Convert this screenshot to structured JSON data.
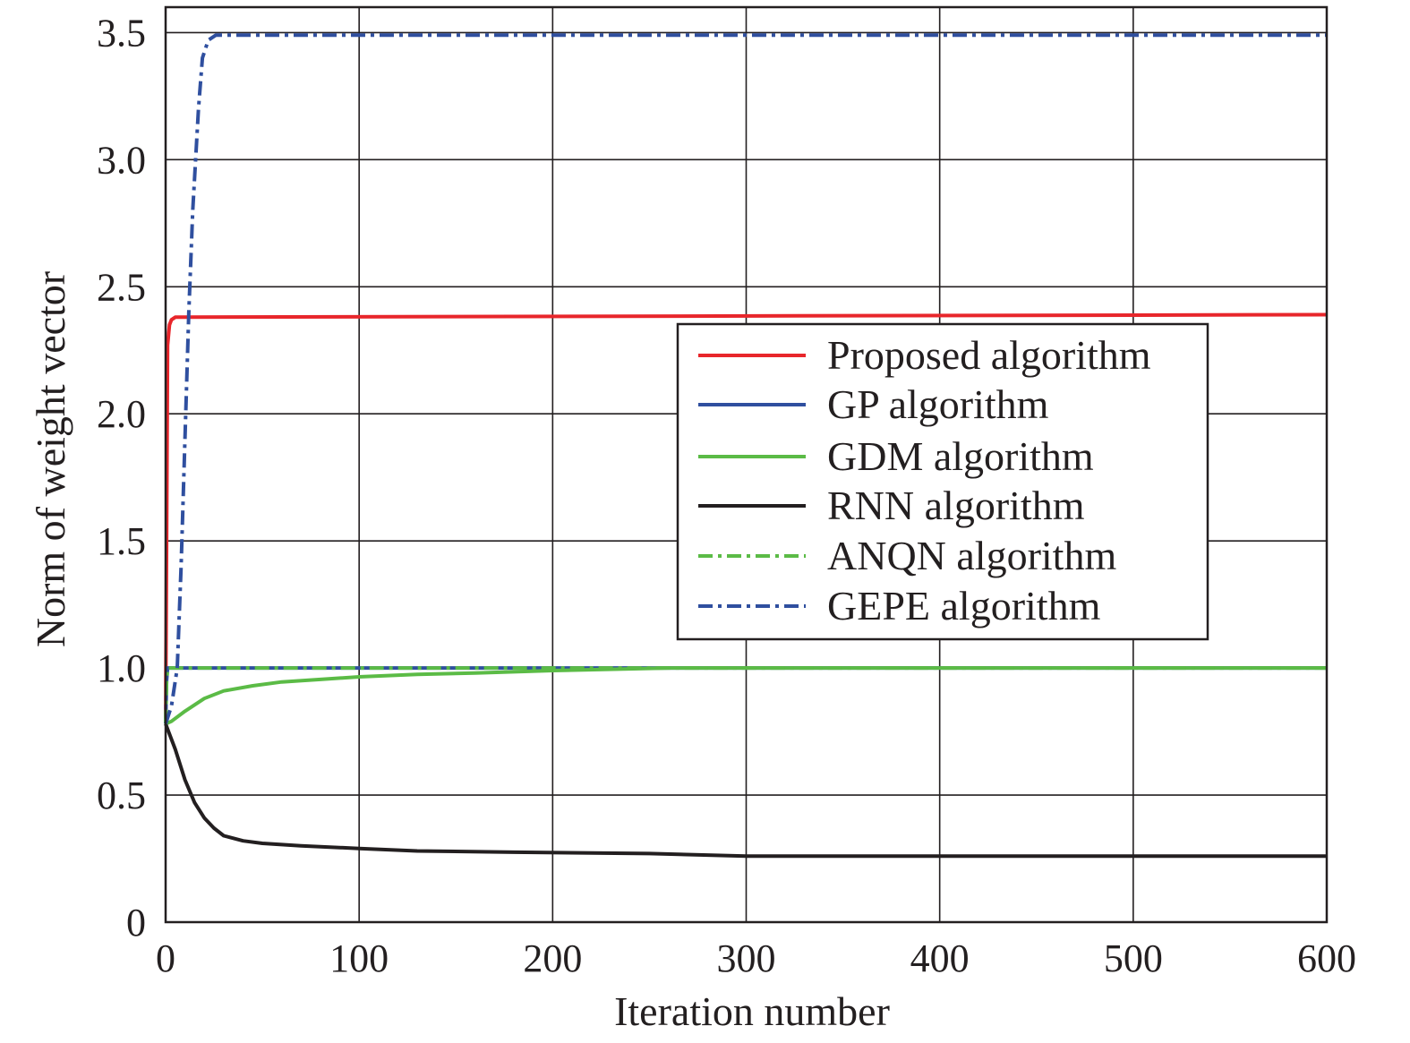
{
  "chart_data": {
    "type": "line",
    "title": "",
    "xlabel": "Iteration number",
    "ylabel": "Norm of weight vector",
    "xlim": [
      0,
      600
    ],
    "ylim": [
      0,
      3.6
    ],
    "xticks": [
      0,
      100,
      200,
      300,
      400,
      500,
      600
    ],
    "xtick_labels": [
      "0",
      "100",
      "200",
      "300",
      "400",
      "500",
      "600"
    ],
    "yticks": [
      0,
      0.5,
      1.0,
      1.5,
      2.0,
      2.5,
      3.0,
      3.5
    ],
    "ytick_labels": [
      "0",
      "0.5",
      "1.0",
      "1.5",
      "2.0",
      "2.5",
      "3.0",
      "3.5"
    ],
    "grid": true,
    "legend_position": "center-right",
    "series": [
      {
        "name": "Proposed algorithm",
        "color": "#e8262b",
        "style": "solid",
        "x": [
          0,
          0.5,
          1,
          2,
          3,
          5,
          8,
          600
        ],
        "y": [
          0.8,
          1.5,
          2.27,
          2.35,
          2.37,
          2.38,
          2.38,
          2.39
        ]
      },
      {
        "name": "GP algorithm",
        "color": "#2f4f9f",
        "style": "solid",
        "x": [
          0,
          0.5,
          1,
          600
        ],
        "y": [
          0.78,
          0.95,
          1.0,
          1.0
        ]
      },
      {
        "name": "GDM algorithm",
        "color": "#5bbb46",
        "style": "solid",
        "x": [
          0,
          3,
          10,
          20,
          30,
          45,
          60,
          80,
          100,
          130,
          160,
          200,
          260,
          600
        ],
        "y": [
          0.78,
          0.79,
          0.83,
          0.88,
          0.91,
          0.93,
          0.945,
          0.955,
          0.965,
          0.975,
          0.98,
          0.99,
          1.0,
          1.0
        ]
      },
      {
        "name": "RNN algorithm",
        "color": "#231f20",
        "style": "solid",
        "x": [
          0,
          5,
          10,
          15,
          20,
          25,
          30,
          40,
          50,
          70,
          100,
          130,
          180,
          250,
          300,
          400,
          500,
          600
        ],
        "y": [
          0.78,
          0.68,
          0.56,
          0.47,
          0.41,
          0.37,
          0.34,
          0.32,
          0.31,
          0.3,
          0.29,
          0.28,
          0.275,
          0.27,
          0.26,
          0.26,
          0.26,
          0.26
        ]
      },
      {
        "name": "ANQN algorithm",
        "color": "#5bbb46",
        "style": "dashdot",
        "x": [
          0,
          0.5,
          1,
          600
        ],
        "y": [
          0.78,
          0.95,
          1.0,
          1.0
        ]
      },
      {
        "name": "GEPE algorithm",
        "color": "#2f4f9f",
        "style": "dashdot",
        "x": [
          0,
          3,
          6,
          8,
          10,
          12,
          14,
          17,
          19,
          22,
          26,
          600
        ],
        "y": [
          0.78,
          0.85,
          1.0,
          1.4,
          1.9,
          2.4,
          2.8,
          3.2,
          3.4,
          3.47,
          3.49,
          3.49
        ]
      }
    ]
  }
}
